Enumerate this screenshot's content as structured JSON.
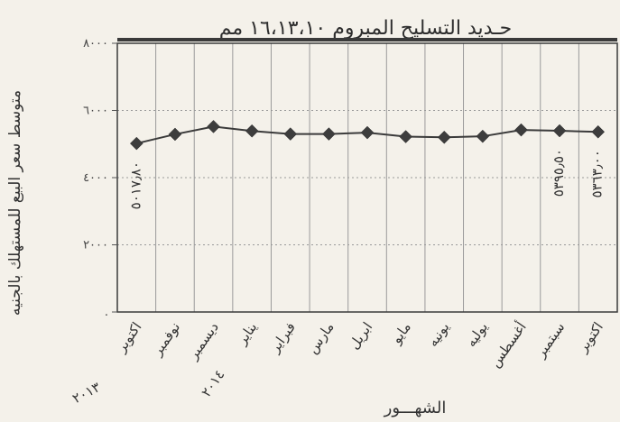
{
  "chart_data": {
    "type": "line",
    "title": "حـديد التسليح المبروم ١٦،١٣،١٠ مم",
    "ylabel": "متوسط سعر البيع للمستهلك بالجنيه",
    "xlabel": "الشهـــور",
    "year_label": "٢٠١٣",
    "second_year_label": "٢٠١٤",
    "categories": [
      "اكتوبر",
      "نوفمبر",
      "ديسمبر",
      "يناير",
      "فبراير",
      "مارس",
      "ابريل",
      "مايو",
      "يونيه",
      "يوليه",
      "أغسطس",
      "سبتمبر",
      "اكتوبر"
    ],
    "values": [
      5017.8,
      5290,
      5520,
      5390,
      5300,
      5300,
      5340,
      5220,
      5200,
      5230,
      5420,
      5395.5,
      5363.0
    ],
    "y_ticks": [
      {
        "value": 0,
        "label": "."
      },
      {
        "value": 2000,
        "label": "٢٠٠٠"
      },
      {
        "value": 4000,
        "label": "٤٠٠٠"
      },
      {
        "value": 6000,
        "label": "٦٠٠٠"
      },
      {
        "value": 8000,
        "label": "٨٠٠٠"
      }
    ],
    "ylim": [
      0,
      8000
    ],
    "data_labels": [
      {
        "index": 0,
        "text": "٥٠١٧٫٨٠"
      },
      {
        "index": 11,
        "text": "٥٣٩٥٫٥٠"
      },
      {
        "index": 12,
        "text": "٥٣٦٣٫٠٠"
      }
    ],
    "grid": true,
    "colors": {
      "line": "#3b3b3b",
      "marker": "#3d3d3d",
      "grid": "#9a9a9a"
    }
  }
}
